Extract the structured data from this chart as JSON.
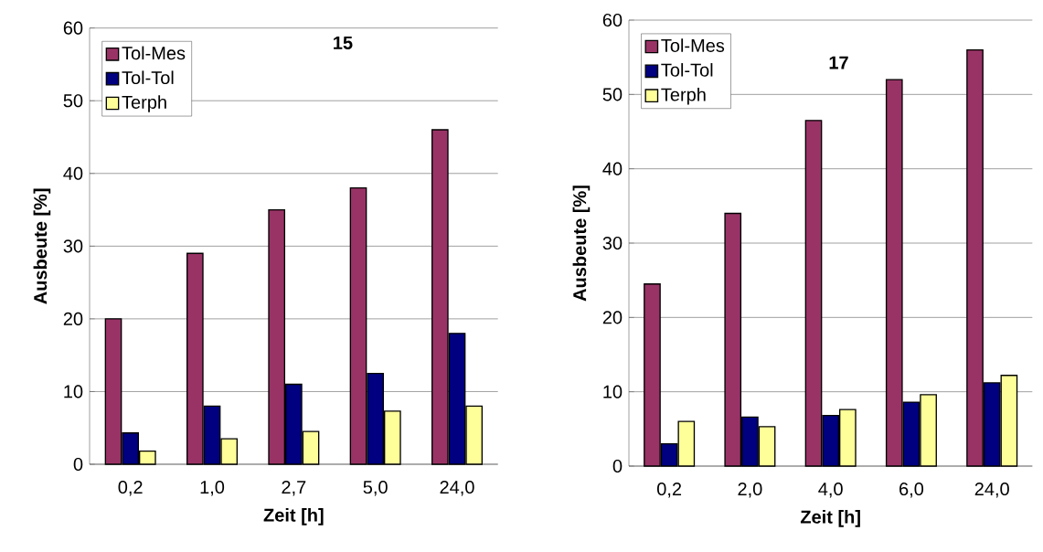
{
  "chart_data": [
    {
      "type": "bar",
      "title": "15",
      "xlabel": "Zeit [h]",
      "ylabel": "Ausbeute [%]",
      "categories": [
        "0,2",
        "1,0",
        "2,7",
        "5,0",
        "24,0"
      ],
      "ylim": [
        0,
        60
      ],
      "yticks": [
        0,
        10,
        20,
        30,
        40,
        50,
        60
      ],
      "grid": "y",
      "legend": "top left",
      "series": [
        {
          "name": "Tol-Mes",
          "color": "#993366",
          "values": [
            20,
            29,
            35,
            38,
            46
          ]
        },
        {
          "name": "Tol-Tol",
          "color": "#000080",
          "values": [
            4.3,
            8,
            11,
            12.5,
            18
          ]
        },
        {
          "name": "Terph",
          "color": "#ffff99",
          "values": [
            1.8,
            3.5,
            4.5,
            7.3,
            8
          ]
        }
      ]
    },
    {
      "type": "bar",
      "title": "17",
      "xlabel": "Zeit [h]",
      "ylabel": "Ausbeute [%]",
      "categories": [
        "0,2",
        "2,0",
        "4,0",
        "6,0",
        "24,0"
      ],
      "ylim": [
        0,
        60
      ],
      "yticks": [
        0,
        10,
        20,
        30,
        40,
        50,
        60
      ],
      "grid": "y",
      "legend": "top left",
      "series": [
        {
          "name": "Tol-Mes",
          "color": "#993366",
          "values": [
            24.5,
            34,
            46.5,
            52,
            56
          ]
        },
        {
          "name": "Tol-Tol",
          "color": "#000080",
          "values": [
            3,
            6.6,
            6.8,
            8.6,
            11.2
          ]
        },
        {
          "name": "Terph",
          "color": "#ffff99",
          "values": [
            6,
            5.3,
            7.6,
            9.6,
            12.2
          ]
        }
      ]
    }
  ]
}
